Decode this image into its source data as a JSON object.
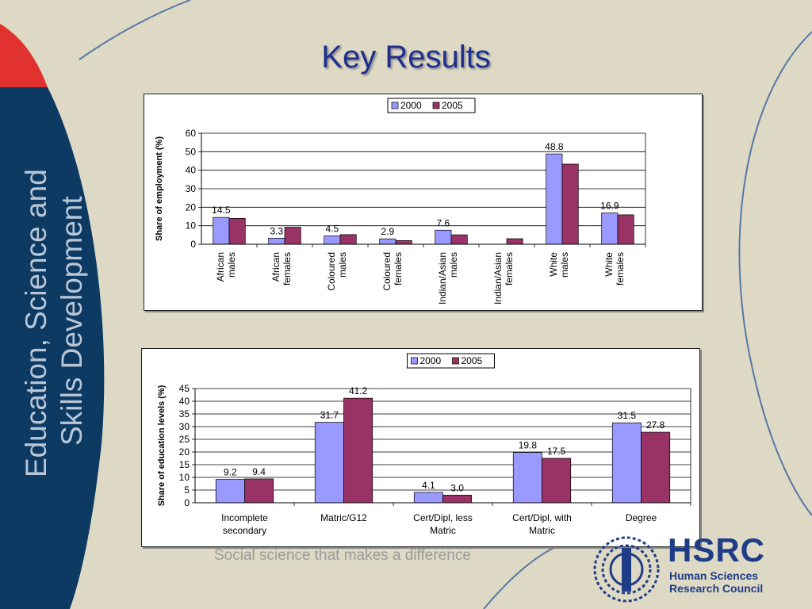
{
  "slide": {
    "title": "Key Results",
    "side_text_line1": "Education, Science and",
    "side_text_line2": "Skills Development",
    "tagline": "Social science that makes a difference"
  },
  "logo": {
    "main": "HSRC",
    "sub_line1": "Human Sciences",
    "sub_line2": "Research Council"
  },
  "colors": {
    "background": "#ddd9c4",
    "side_band": "#0d3a63",
    "accent_red": "#e2322f",
    "series_2000": "#9999ff",
    "series_2005": "#993366",
    "title": "#1f2f8f"
  },
  "chart_data": [
    {
      "type": "bar",
      "ylabel": "Share of employment (%)",
      "ylim": [
        0,
        60
      ],
      "yticks": [
        0,
        10,
        20,
        30,
        40,
        50,
        60
      ],
      "grid": true,
      "legend": "top-center",
      "categories": [
        [
          "African",
          "males"
        ],
        [
          "African",
          "females"
        ],
        [
          "Coloured",
          "males"
        ],
        [
          "Coloured",
          "females"
        ],
        [
          "Indian/Asian",
          "males"
        ],
        [
          "Indian/Asian",
          "females"
        ],
        [
          "White",
          "males"
        ],
        [
          "White",
          "females"
        ]
      ],
      "series": [
        {
          "name": "2000",
          "values": [
            14.5,
            3.3,
            4.5,
            2.9,
            7.6,
            0,
            48.8,
            16.9
          ],
          "labels": [
            "14.5",
            "3.3",
            "4.5",
            "2.9",
            "7.6",
            "",
            "48.8",
            "16.9"
          ]
        },
        {
          "name": "2005",
          "values": [
            14.0,
            9.2,
            5.2,
            2.0,
            5.1,
            3.0,
            43.3,
            15.9
          ],
          "labels": [
            "",
            "",
            "",
            "",
            "",
            "",
            "",
            ""
          ]
        }
      ]
    },
    {
      "type": "bar",
      "ylabel": "Share of education levels (%)",
      "ylim": [
        0,
        45
      ],
      "yticks": [
        0,
        5,
        10,
        15,
        20,
        25,
        30,
        35,
        40,
        45
      ],
      "grid": true,
      "legend": "top-center",
      "categories": [
        [
          "Incomplete",
          "secondary"
        ],
        [
          "Matric/G12"
        ],
        [
          "Cert/Dipl, less",
          "Matric"
        ],
        [
          "Cert/Dipl, with",
          "Matric"
        ],
        [
          "Degree"
        ]
      ],
      "series": [
        {
          "name": "2000",
          "values": [
            9.2,
            31.7,
            4.1,
            19.8,
            31.5
          ],
          "labels": [
            "9.2",
            "31.7",
            "4.1",
            "19.8",
            "31.5"
          ]
        },
        {
          "name": "2005",
          "values": [
            9.4,
            41.2,
            3.0,
            17.5,
            27.8
          ],
          "labels": [
            "9.4",
            "41.2",
            "3.0",
            "17.5",
            "27.8"
          ]
        }
      ]
    }
  ]
}
